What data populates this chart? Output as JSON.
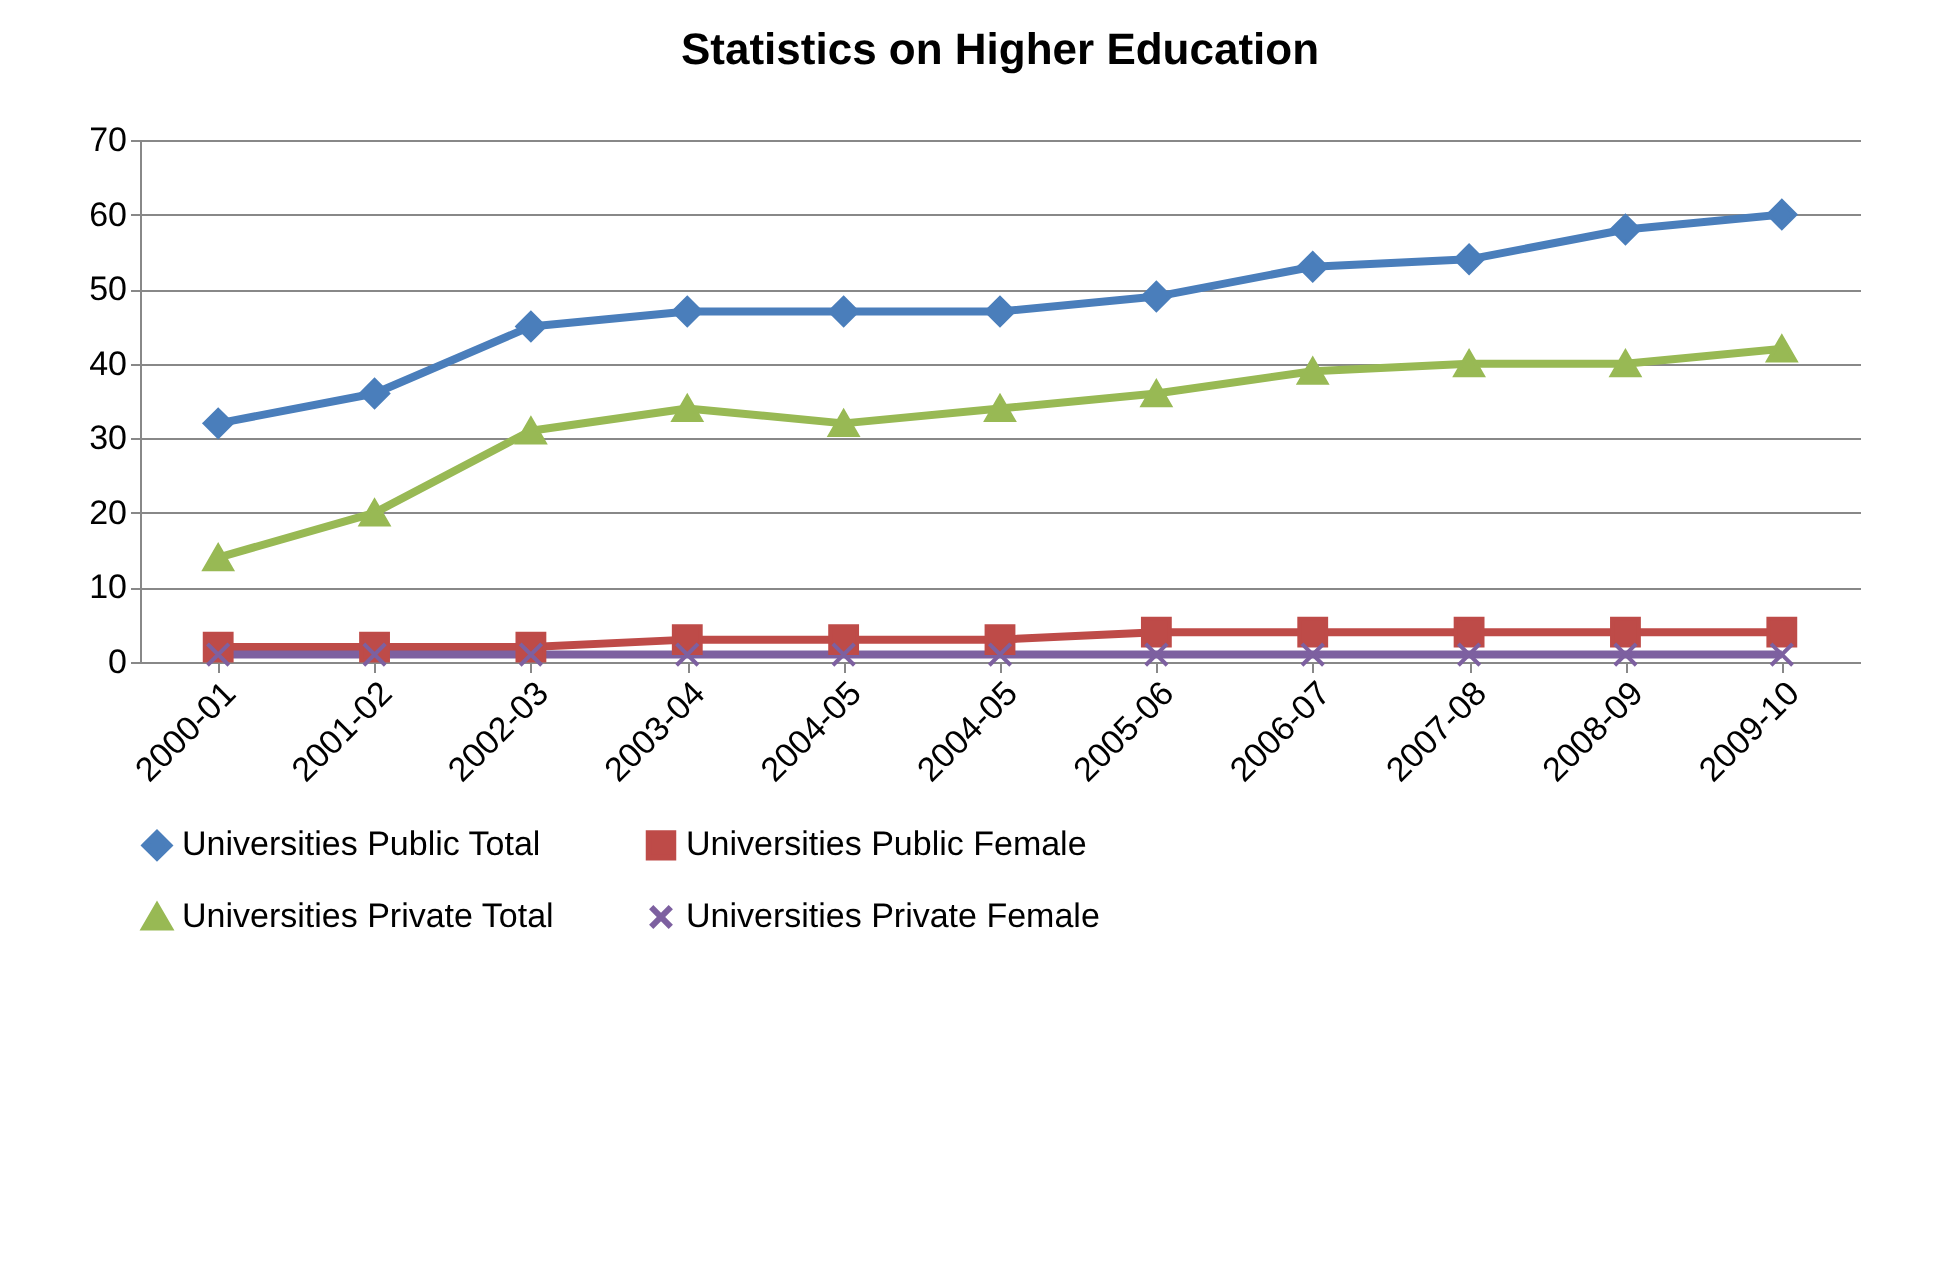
{
  "chart_data": {
    "type": "line",
    "title": "Statistics on Higher Education",
    "categories": [
      "2000-01",
      "2001-02",
      "2002-03",
      "2003-04",
      "2004-05",
      "2004-05",
      "2005-06",
      "2006-07",
      "2007-08",
      "2008-09",
      "2009-10"
    ],
    "series": [
      {
        "name": "Universities Public Total",
        "color": "#4a7ebb",
        "marker": "diamond",
        "values": [
          32,
          36,
          45,
          47,
          47,
          47,
          49,
          53,
          54,
          58,
          60
        ]
      },
      {
        "name": "Universities Public Female",
        "color": "#be4b48",
        "marker": "square",
        "values": [
          2,
          2,
          2,
          3,
          3,
          3,
          4,
          4,
          4,
          4,
          4
        ]
      },
      {
        "name": "Universities Private Total",
        "color": "#98b954",
        "marker": "triangle",
        "values": [
          14,
          20,
          31,
          34,
          32,
          34,
          36,
          39,
          40,
          40,
          42
        ]
      },
      {
        "name": "Universities Private Female",
        "color": "#7d60a0",
        "marker": "cross",
        "values": [
          1,
          1,
          1,
          1,
          1,
          1,
          1,
          1,
          1,
          1,
          1
        ]
      }
    ],
    "ylim": [
      0,
      70
    ],
    "yticks": [
      0,
      10,
      20,
      30,
      40,
      50,
      60,
      70
    ],
    "grid": "y",
    "legend": "bottom"
  }
}
